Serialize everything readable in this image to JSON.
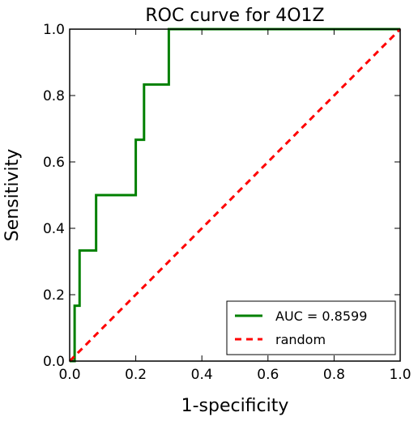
{
  "chart_data": {
    "type": "line",
    "title": "ROC curve for 4O1Z",
    "xlabel": "1-specificity",
    "ylabel": "Sensitivity",
    "xlim": [
      0.0,
      1.0
    ],
    "ylim": [
      0.0,
      1.0
    ],
    "xticks": [
      "0.0",
      "0.2",
      "0.4",
      "0.6",
      "0.8",
      "1.0"
    ],
    "yticks": [
      "0.0",
      "0.2",
      "0.4",
      "0.6",
      "0.8",
      "1.0"
    ],
    "grid": false,
    "legend_position": "lower-right",
    "series": [
      {
        "name": "AUC = 0.8599",
        "color": "#008000",
        "style": "solid",
        "x": [
          0.0,
          0.015,
          0.015,
          0.03,
          0.03,
          0.08,
          0.08,
          0.2,
          0.2,
          0.225,
          0.225,
          0.3,
          0.3,
          1.0
        ],
        "y": [
          0.0,
          0.0,
          0.1667,
          0.1667,
          0.3333,
          0.3333,
          0.5,
          0.5,
          0.6667,
          0.6667,
          0.8333,
          0.8333,
          1.0,
          1.0
        ]
      },
      {
        "name": "random",
        "color": "#ff0000",
        "style": "dashed",
        "x": [
          0.0,
          1.0
        ],
        "y": [
          0.0,
          1.0
        ]
      }
    ]
  }
}
